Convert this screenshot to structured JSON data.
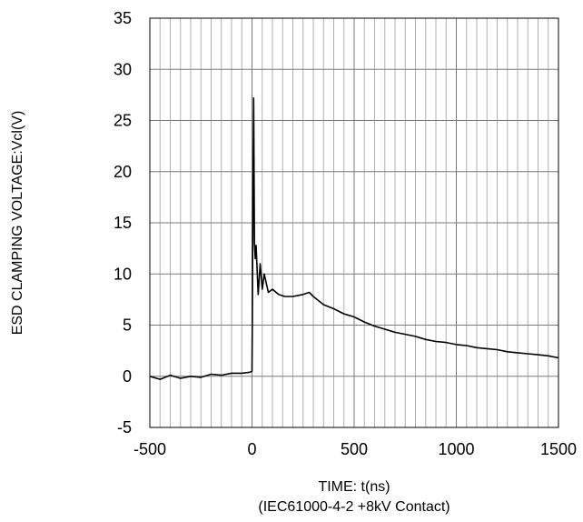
{
  "chart_data": {
    "type": "line",
    "title": "",
    "xlabel": "TIME: t(ns)",
    "xlabel_sub": "(IEC61000-4-2 +8kV Contact)",
    "ylabel": "ESD CLAMPING VOLTAGE:Vcl(V)",
    "xlim": [
      -500,
      1500
    ],
    "ylim": [
      -5,
      35
    ],
    "x_major_ticks": [
      -500,
      0,
      500,
      1000,
      1500
    ],
    "y_major_ticks": [
      -5,
      0,
      5,
      10,
      15,
      20,
      25,
      30,
      35
    ],
    "x_tick_labels": [
      "-500",
      "0",
      "500",
      "1000",
      "1500"
    ],
    "y_tick_labels": [
      "-5",
      "0",
      "5",
      "10",
      "15",
      "20",
      "25",
      "30",
      "35"
    ],
    "x_minor_step": 50,
    "grid": true,
    "legend": "none",
    "series": [
      {
        "name": "",
        "color": "#000000",
        "x": [
          -500,
          -450,
          -400,
          -350,
          -300,
          -250,
          -200,
          -150,
          -100,
          -50,
          -10,
          0,
          2,
          5,
          8,
          12,
          16,
          20,
          30,
          40,
          50,
          60,
          80,
          100,
          130,
          160,
          200,
          250,
          280,
          300,
          350,
          400,
          450,
          500,
          550,
          600,
          650,
          700,
          750,
          800,
          850,
          900,
          950,
          1000,
          1050,
          1100,
          1150,
          1200,
          1250,
          1300,
          1350,
          1400,
          1450,
          1500
        ],
        "y": [
          0,
          -0.3,
          0.1,
          -0.2,
          0,
          -0.1,
          0.2,
          0.1,
          0.3,
          0.3,
          0.4,
          0.5,
          6,
          18,
          27.2,
          13,
          11.5,
          12.8,
          8,
          11,
          8.5,
          10,
          8.2,
          8.5,
          8,
          7.8,
          7.8,
          8,
          8.2,
          7.8,
          7,
          6.6,
          6.1,
          5.8,
          5.3,
          4.9,
          4.6,
          4.3,
          4.1,
          3.9,
          3.6,
          3.4,
          3.3,
          3.1,
          3,
          2.8,
          2.7,
          2.6,
          2.4,
          2.3,
          2.2,
          2.1,
          2,
          1.8
        ]
      }
    ]
  }
}
